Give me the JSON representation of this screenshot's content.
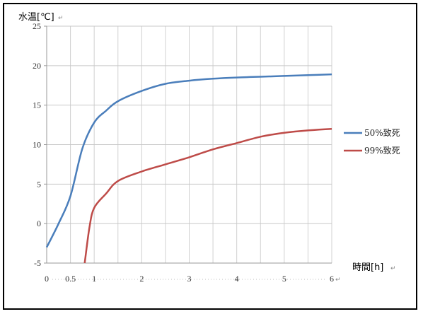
{
  "chart_data": {
    "type": "line",
    "ylabel": "水温[℃]",
    "xlabel": "時間[h]",
    "ylim": [
      -5,
      25
    ],
    "xlim": [
      0,
      6
    ],
    "y_ticks": [
      -5,
      0,
      5,
      10,
      15,
      20,
      25
    ],
    "x_tick_labels": [
      {
        "value": 0,
        "label": "0"
      },
      {
        "value": 0.5,
        "label": "0.5"
      },
      {
        "value": 1,
        "label": "1"
      },
      {
        "value": 2,
        "label": "2"
      },
      {
        "value": 3,
        "label": "3"
      },
      {
        "value": 4,
        "label": "4"
      },
      {
        "value": 5,
        "label": "5"
      },
      {
        "value": 6,
        "label": "6"
      }
    ],
    "grid": true,
    "legend_position": "right",
    "series": [
      {
        "name": "50%致死",
        "color": "#4a7ebb",
        "points": [
          [
            0,
            -3
          ],
          [
            0.25,
            0
          ],
          [
            0.5,
            3.5
          ],
          [
            0.75,
            9.5
          ],
          [
            1,
            12.8
          ],
          [
            1.25,
            14.3
          ],
          [
            1.5,
            15.5
          ],
          [
            2,
            16.8
          ],
          [
            2.5,
            17.7
          ],
          [
            3,
            18.1
          ],
          [
            3.5,
            18.35
          ],
          [
            4,
            18.5
          ],
          [
            4.5,
            18.6
          ],
          [
            5,
            18.7
          ],
          [
            5.5,
            18.8
          ],
          [
            6,
            18.9
          ]
        ]
      },
      {
        "name": "99%致死",
        "color": "#be4b48",
        "points": [
          [
            0.8,
            -5
          ],
          [
            0.9,
            -0.5
          ],
          [
            1,
            2
          ],
          [
            1.25,
            3.8
          ],
          [
            1.5,
            5.4
          ],
          [
            2,
            6.6
          ],
          [
            2.5,
            7.5
          ],
          [
            3,
            8.4
          ],
          [
            3.5,
            9.4
          ],
          [
            4,
            10.2
          ],
          [
            4.5,
            11
          ],
          [
            5,
            11.5
          ],
          [
            5.5,
            11.8
          ],
          [
            6,
            12
          ]
        ]
      }
    ]
  },
  "return_mark": "↵"
}
